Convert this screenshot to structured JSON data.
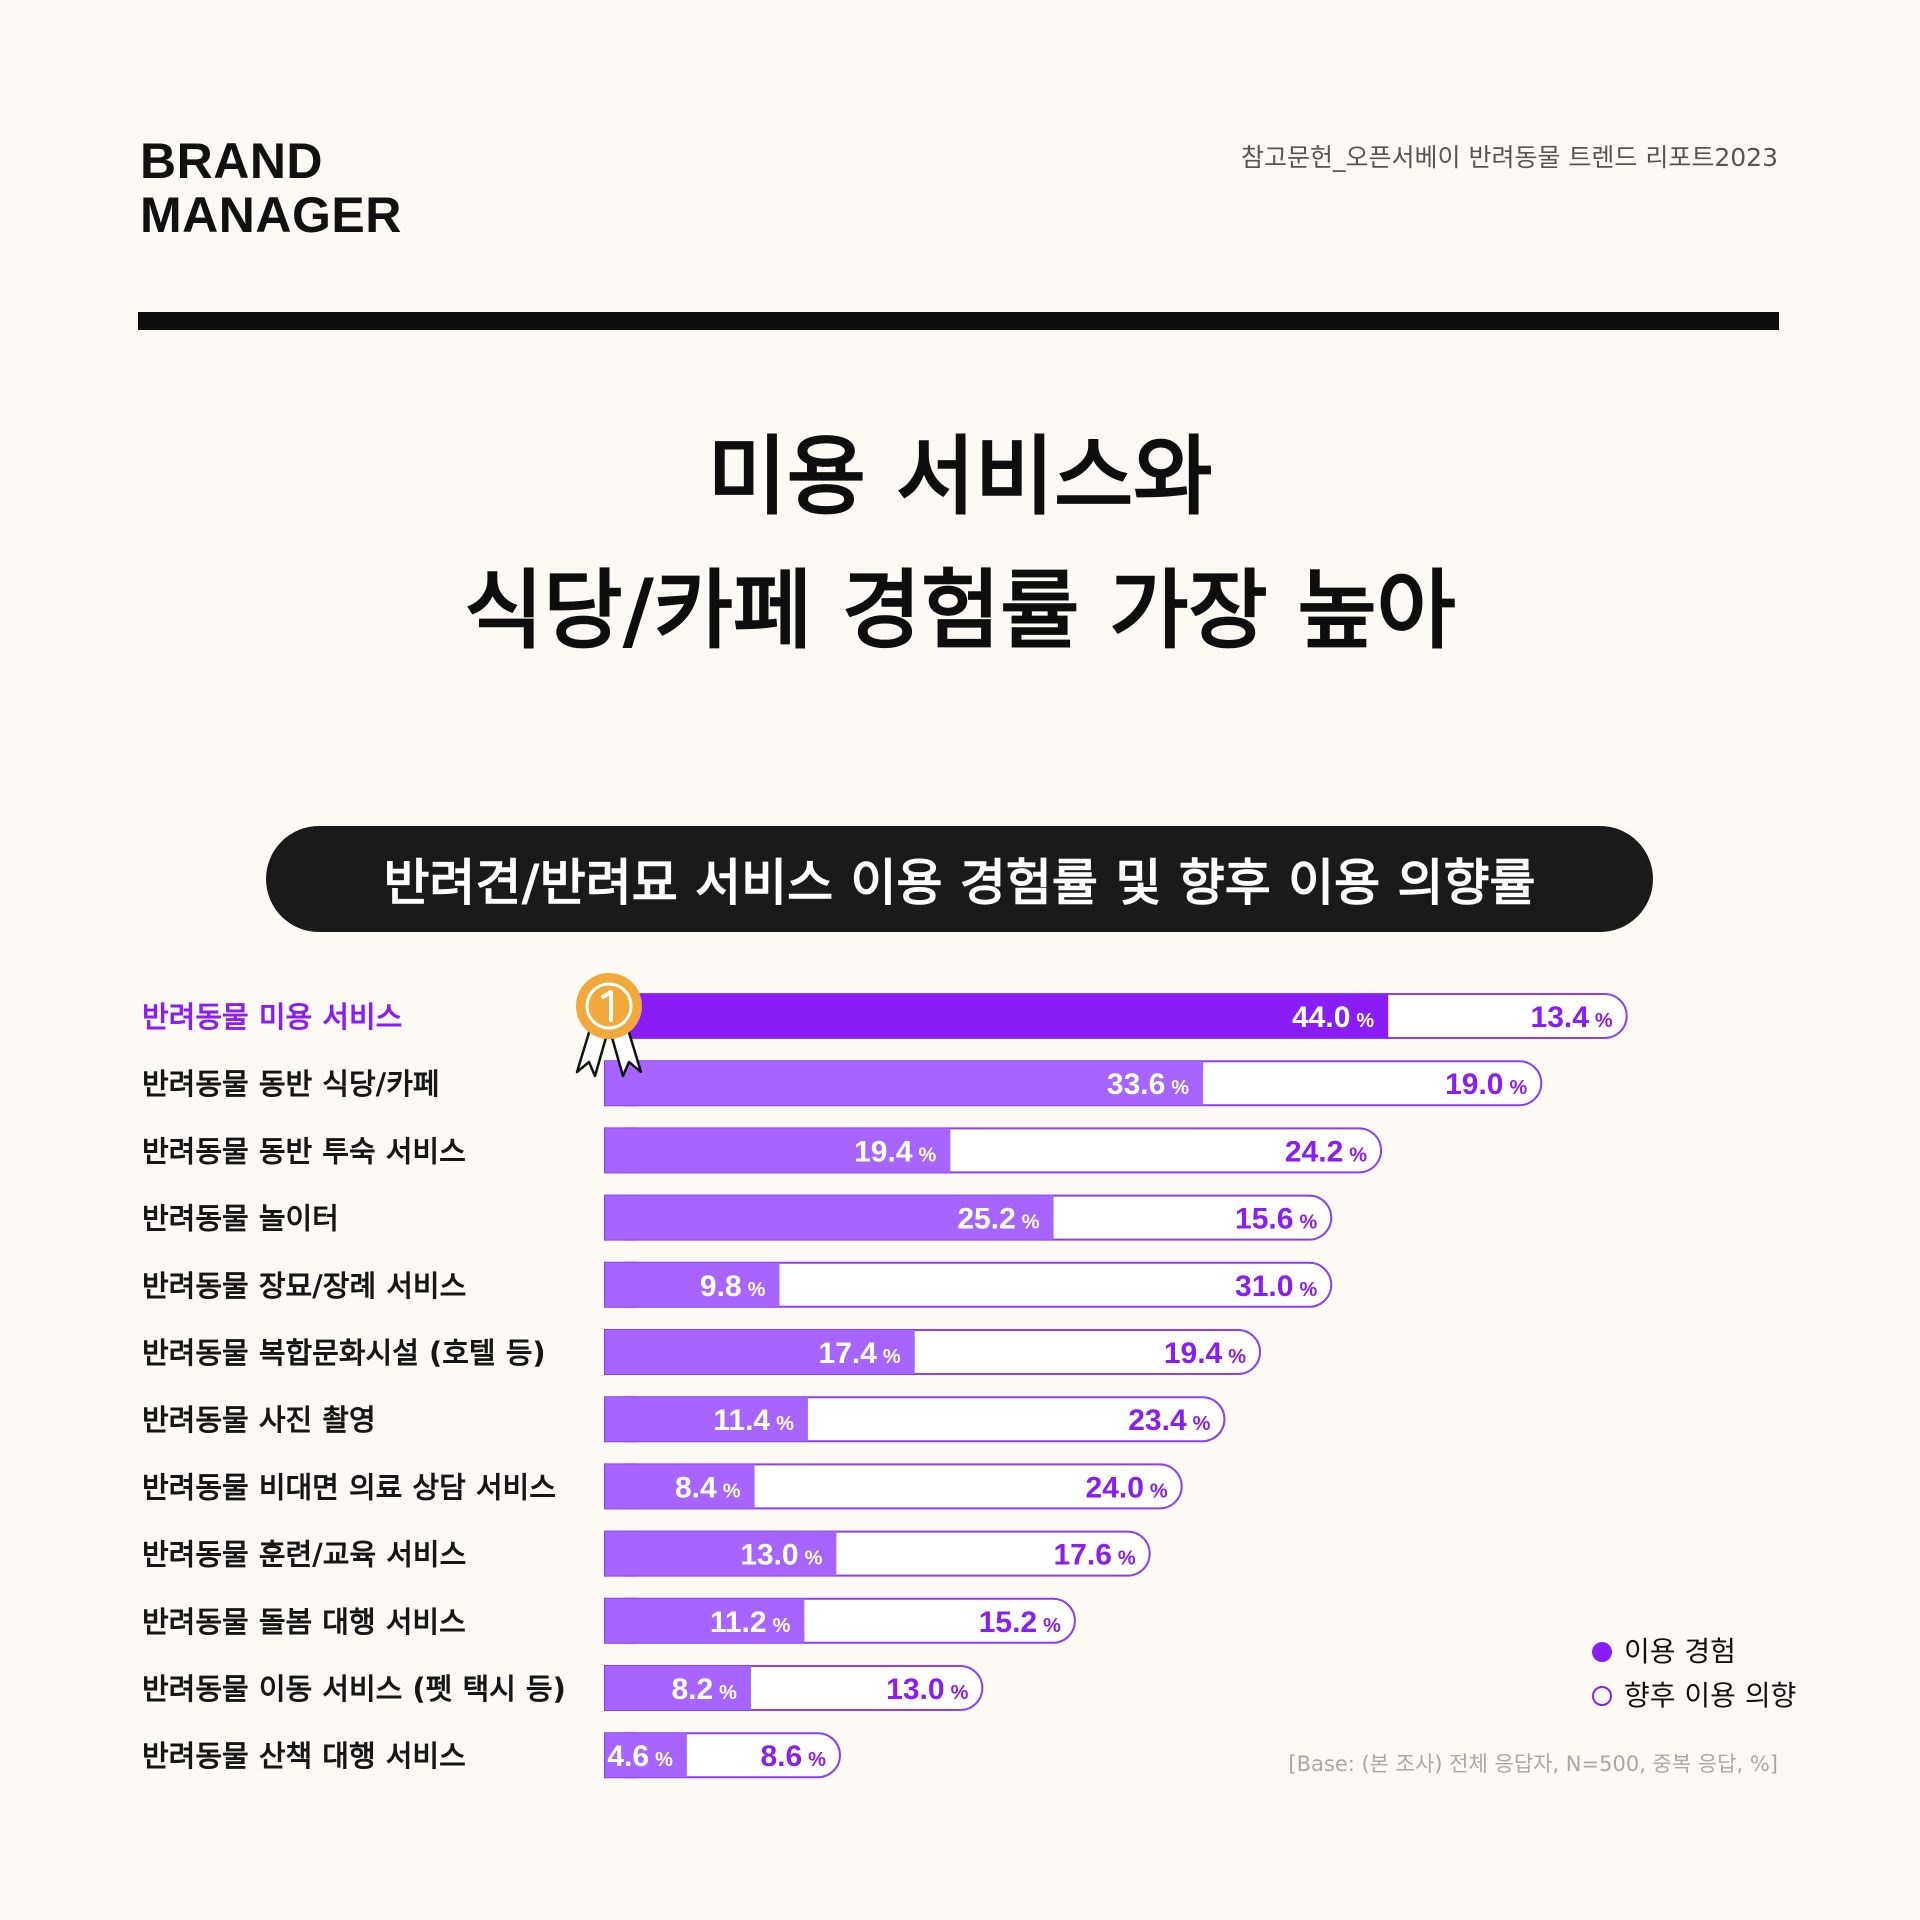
{
  "brand": {
    "line1": "BRAND",
    "line2": "MANAGER"
  },
  "source": "참고문헌_오픈서베이 반려동물 트렌드 리포트2023",
  "headline": {
    "line1": "미용 서비스와",
    "line2": "식당/카페 경험률 가장 높아"
  },
  "colors": {
    "accent": "#8a1cf6",
    "experience_top": "#8a1cf6",
    "experience": "#a864ff",
    "outline": "#8a3ffc",
    "medal": "#f2a93b"
  },
  "chart_data": {
    "type": "bar",
    "orientation": "horizontal",
    "stacked": true,
    "title": "반려견/반려묘 서비스 이용 경험률 및 향후 이용 의향률",
    "unit": "%",
    "legend_position": "bottom-right",
    "highlight_index": 0,
    "highlight_icon": "first-place-medal-icon",
    "categories": [
      "반려동물 미용 서비스",
      "반려동물 동반 식당/카페",
      "반려동물 동반 투숙 서비스",
      "반려동물 놀이터",
      "반려동물 장묘/장례 서비스",
      "반려동물 복합문화시설 (호텔 등)",
      "반려동물 사진 촬영",
      "반려동물 비대면 의료 상담 서비스",
      "반려동물 훈련/교육 서비스",
      "반려동물 돌봄 대행 서비스",
      "반려동물 이동 서비스 (펫 택시 등)",
      "반려동물 산책 대행 서비스"
    ],
    "series": [
      {
        "name": "이용 경험",
        "values": [
          44.0,
          33.6,
          19.4,
          25.2,
          9.8,
          17.4,
          11.4,
          8.4,
          13.0,
          11.2,
          8.2,
          4.6
        ]
      },
      {
        "name": "향후 이용 의향",
        "values": [
          13.4,
          19.0,
          24.2,
          15.6,
          31.0,
          19.4,
          23.4,
          24.0,
          17.6,
          15.2,
          13.0,
          8.6
        ]
      }
    ],
    "base_note": "[Base: (본 조사) 전체 응답자, N=500, 중복 응답, %]"
  }
}
